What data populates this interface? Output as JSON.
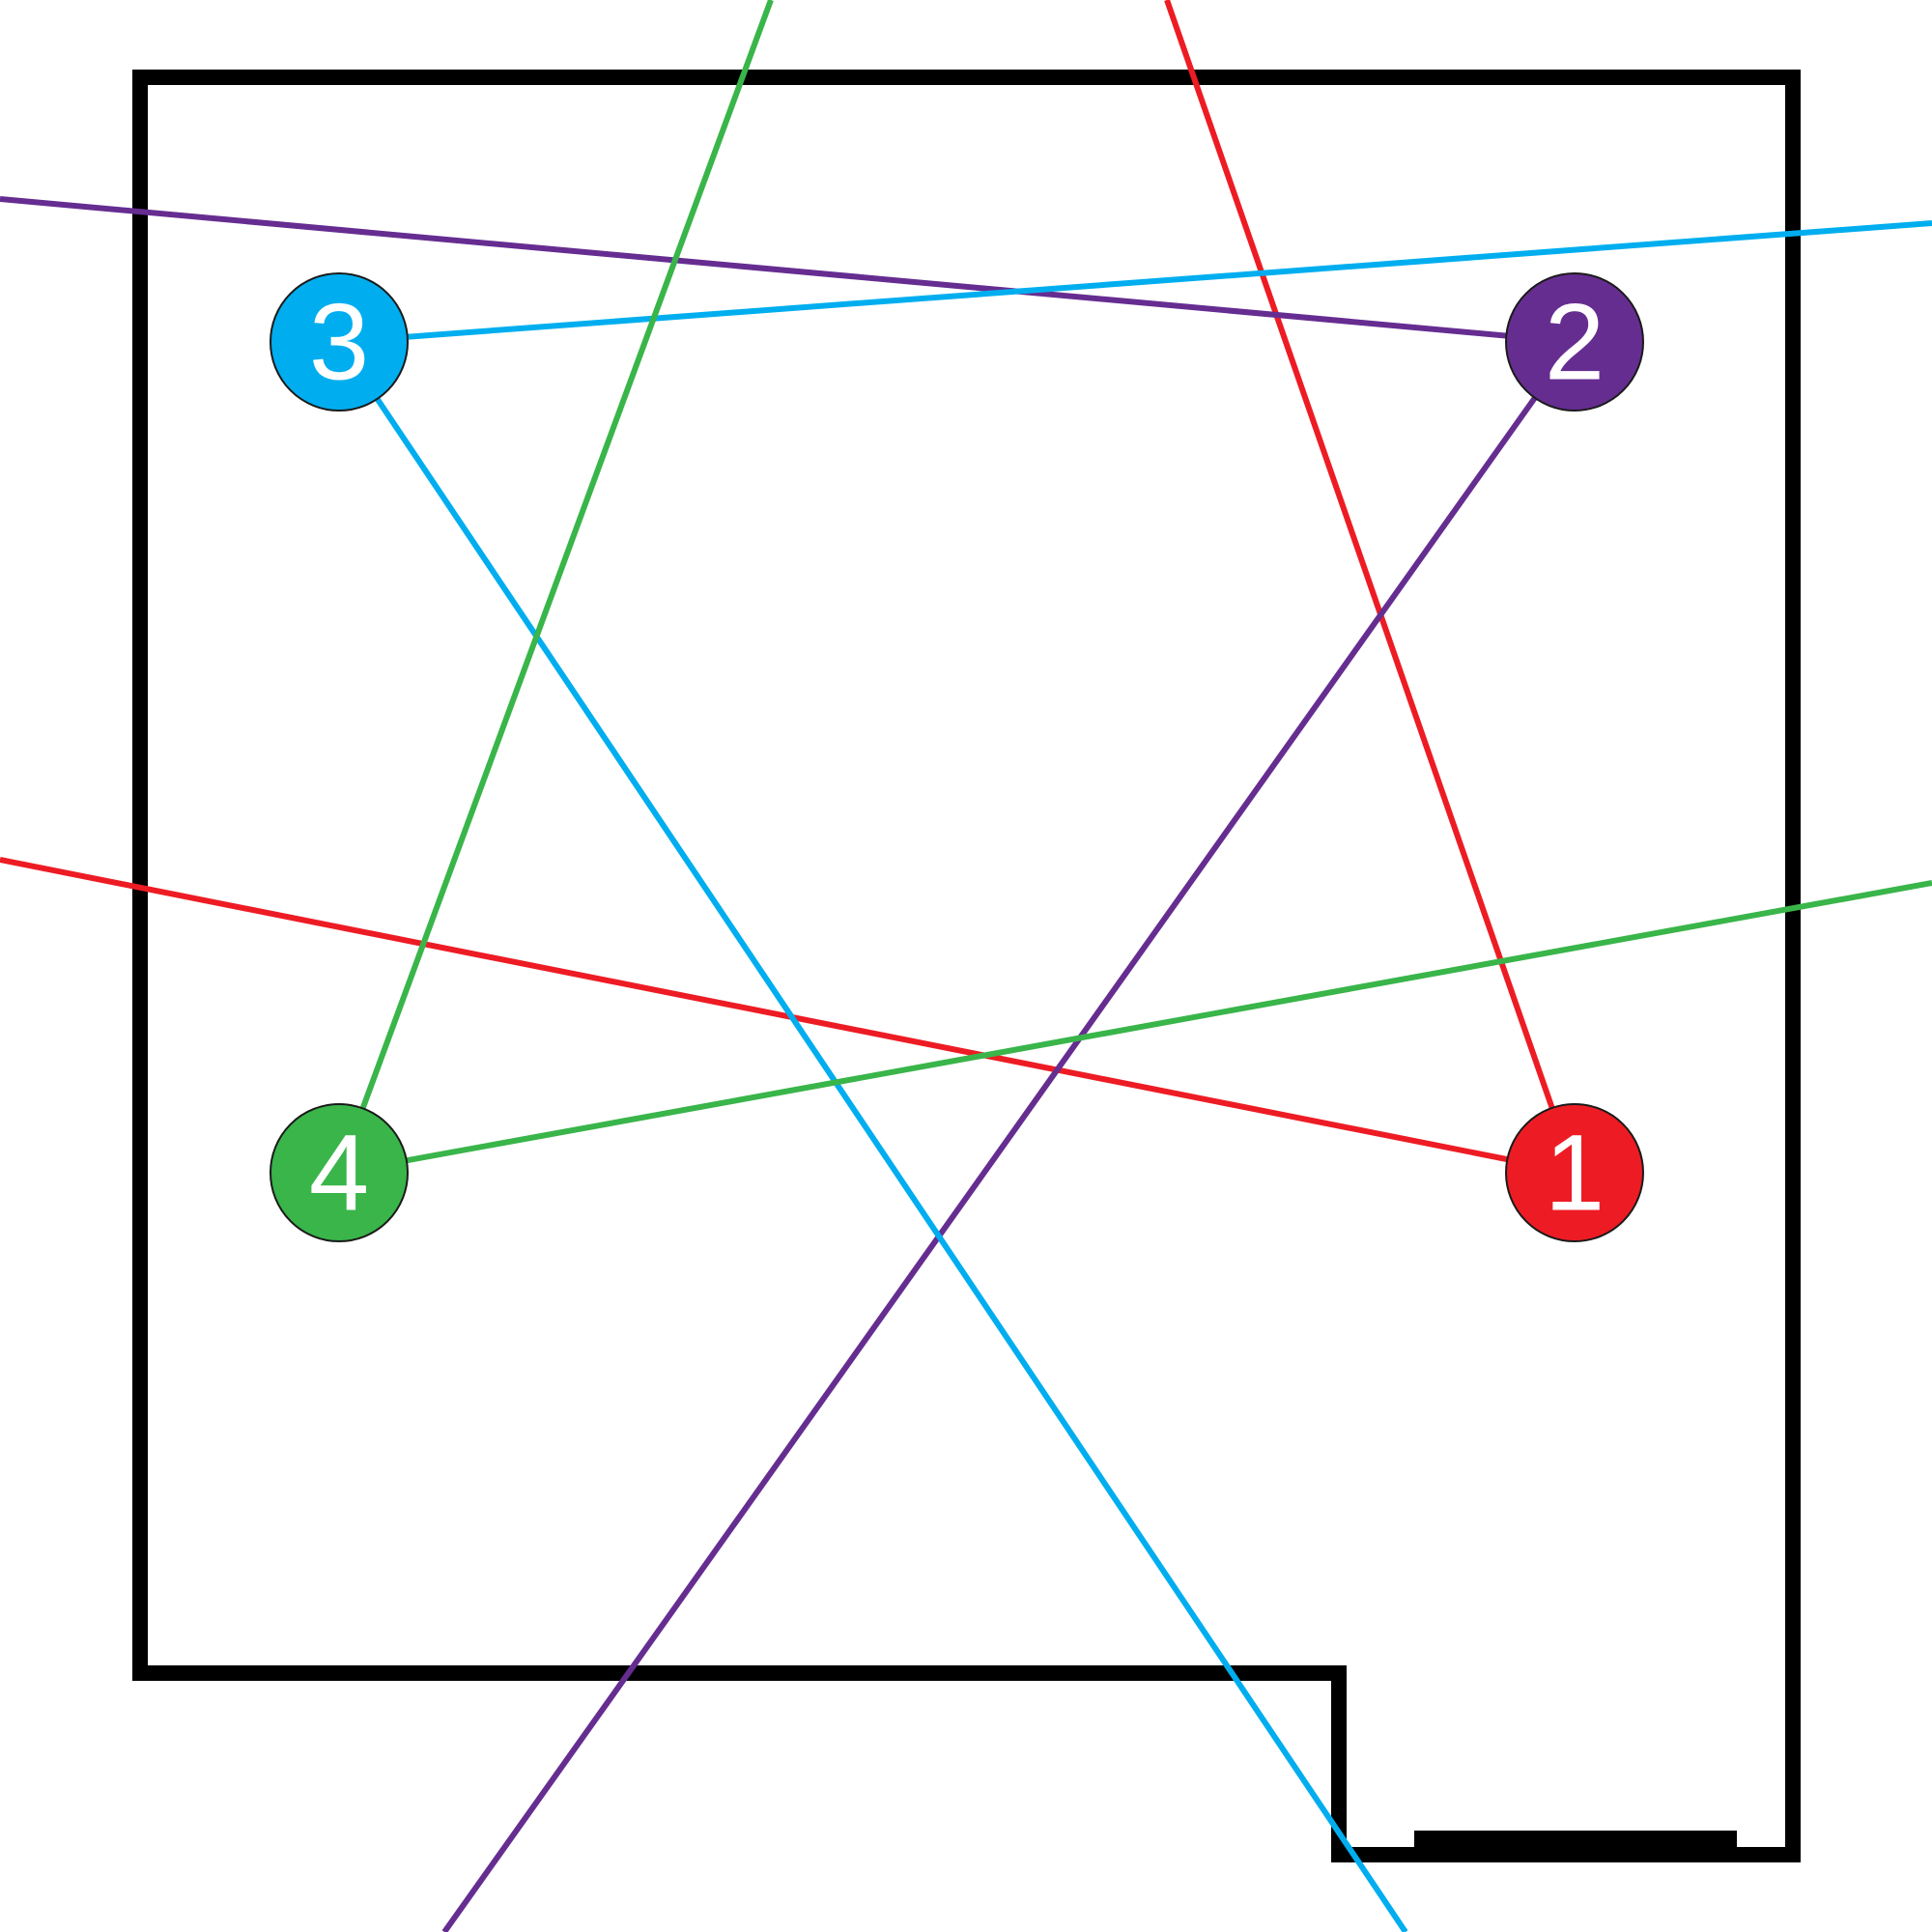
{
  "colors": {
    "background": "#ffffff",
    "room_outline": "#000000",
    "node_stroke": "#1a1a1a"
  },
  "nodes": [
    {
      "label": "1",
      "color": "#ed1c24"
    },
    {
      "label": "2",
      "color": "#662d91"
    },
    {
      "label": "3",
      "color": "#00aeef"
    },
    {
      "label": "4",
      "color": "#39b54a"
    }
  ]
}
